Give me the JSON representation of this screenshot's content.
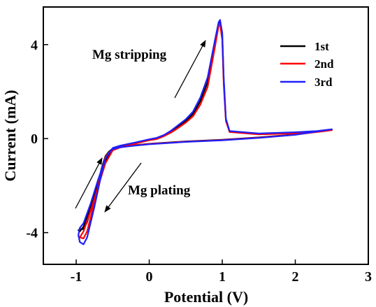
{
  "chart_data": {
    "type": "line",
    "title": "",
    "xlabel": "Potential (V)",
    "ylabel": "Current (mA)",
    "xlim": [
      -1.45,
      3.0
    ],
    "ylim": [
      -5.35,
      5.6
    ],
    "xticks": [
      -1,
      0,
      1,
      2,
      3
    ],
    "yticks": [
      -4,
      0,
      4
    ],
    "legend_position": "top-right",
    "series": [
      {
        "name": "1st",
        "color": "#000000",
        "x": [
          2.5,
          2.3,
          2.0,
          1.5,
          1.1,
          1.05,
          1.02,
          1.0,
          0.97,
          0.95,
          0.9,
          0.8,
          0.7,
          0.6,
          0.5,
          0.4,
          0.3,
          0.2,
          0.1,
          0.0,
          -0.2,
          -0.4,
          -0.5,
          -0.6,
          -0.7,
          -0.8,
          -0.9,
          -0.95,
          -0.97,
          -0.95,
          -0.9,
          -0.85,
          -0.75,
          -0.65,
          -0.6,
          -0.55,
          -0.5,
          -0.4,
          -0.2,
          0.0,
          0.5,
          1.0,
          1.5,
          2.0,
          2.5
        ],
        "y": [
          0.38,
          0.3,
          0.25,
          0.2,
          0.3,
          0.8,
          2.5,
          4.4,
          5.0,
          4.9,
          4.1,
          2.4,
          1.6,
          1.05,
          0.75,
          0.52,
          0.3,
          0.12,
          0.0,
          -0.05,
          -0.2,
          -0.35,
          -0.45,
          -0.95,
          -1.9,
          -2.9,
          -3.75,
          -3.95,
          -3.9,
          -3.85,
          -3.85,
          -3.55,
          -2.5,
          -1.25,
          -0.75,
          -0.55,
          -0.42,
          -0.35,
          -0.28,
          -0.22,
          -0.12,
          -0.05,
          0.05,
          0.18,
          0.38
        ]
      },
      {
        "name": "2nd",
        "color": "#ff0000",
        "x": [
          2.5,
          2.3,
          2.0,
          1.5,
          1.1,
          1.05,
          1.02,
          1.0,
          0.97,
          0.95,
          0.9,
          0.8,
          0.7,
          0.6,
          0.5,
          0.4,
          0.3,
          0.2,
          0.1,
          0.0,
          -0.2,
          -0.4,
          -0.5,
          -0.6,
          -0.7,
          -0.8,
          -0.9,
          -0.95,
          -0.97,
          -0.95,
          -0.9,
          -0.85,
          -0.75,
          -0.65,
          -0.6,
          -0.55,
          -0.5,
          -0.4,
          -0.2,
          0.0,
          0.5,
          1.0,
          1.5,
          2.0,
          2.5
        ],
        "y": [
          0.36,
          0.28,
          0.23,
          0.18,
          0.28,
          0.75,
          2.3,
          4.2,
          4.85,
          4.8,
          3.9,
          2.2,
          1.45,
          0.95,
          0.68,
          0.46,
          0.26,
          0.1,
          -0.02,
          -0.07,
          -0.22,
          -0.38,
          -0.5,
          -1.05,
          -2.05,
          -3.05,
          -3.95,
          -4.2,
          -4.15,
          -4.2,
          -4.25,
          -3.95,
          -2.7,
          -1.35,
          -0.8,
          -0.58,
          -0.44,
          -0.36,
          -0.29,
          -0.23,
          -0.13,
          -0.06,
          0.04,
          0.17,
          0.36
        ]
      },
      {
        "name": "3rd",
        "color": "#1f1fff",
        "x": [
          2.5,
          2.3,
          2.0,
          1.5,
          1.1,
          1.05,
          1.02,
          1.0,
          0.97,
          0.95,
          0.9,
          0.8,
          0.7,
          0.6,
          0.5,
          0.4,
          0.3,
          0.2,
          0.1,
          0.0,
          -0.2,
          -0.4,
          -0.5,
          -0.6,
          -0.7,
          -0.8,
          -0.9,
          -0.95,
          -0.97,
          -0.95,
          -0.9,
          -0.85,
          -0.75,
          -0.65,
          -0.6,
          -0.55,
          -0.5,
          -0.4,
          -0.2,
          0.0,
          0.5,
          1.0,
          1.5,
          2.0,
          2.5
        ],
        "y": [
          0.4,
          0.32,
          0.27,
          0.22,
          0.32,
          0.85,
          2.6,
          4.5,
          5.05,
          4.95,
          4.2,
          2.6,
          1.75,
          1.15,
          0.82,
          0.58,
          0.34,
          0.15,
          0.03,
          -0.03,
          -0.17,
          -0.3,
          -0.4,
          -0.85,
          -1.75,
          -2.75,
          -3.6,
          -3.8,
          -4.1,
          -4.4,
          -4.5,
          -4.2,
          -2.9,
          -1.45,
          -0.85,
          -0.6,
          -0.45,
          -0.37,
          -0.3,
          -0.24,
          -0.14,
          -0.07,
          0.03,
          0.16,
          0.4
        ]
      }
    ],
    "annotations": [
      {
        "text": "Mg stripping"
      },
      {
        "text": "Mg plating"
      }
    ]
  },
  "colors": {
    "axis": "#000000",
    "background": "#ffffff"
  }
}
